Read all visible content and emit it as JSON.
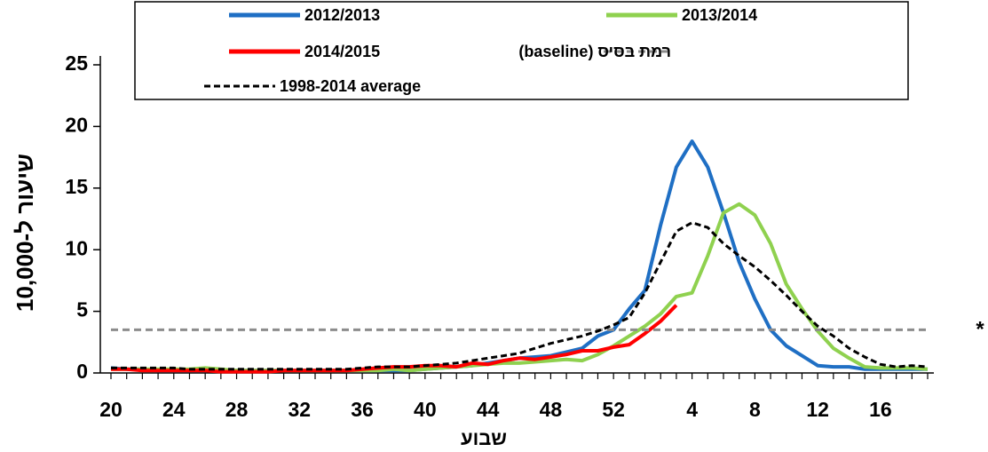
{
  "chart_data": {
    "type": "line",
    "y_label": "שיעור ל-10,000",
    "x_label": "שבוע",
    "annotation": "*",
    "categories": [
      20,
      null,
      null,
      null,
      24,
      null,
      null,
      null,
      28,
      null,
      null,
      null,
      32,
      null,
      null,
      null,
      36,
      null,
      null,
      null,
      40,
      null,
      null,
      null,
      44,
      null,
      null,
      null,
      48,
      null,
      null,
      null,
      52,
      null,
      null,
      null,
      null,
      4,
      null,
      null,
      null,
      8,
      null,
      null,
      null,
      12,
      null,
      null,
      null,
      16,
      null,
      null,
      null
    ],
    "ylim": [
      0,
      25
    ],
    "yticks": [
      0,
      5,
      10,
      15,
      20,
      25
    ],
    "series": [
      {
        "name": "2012/2013",
        "color": "#1f6fc4",
        "dashed": false,
        "values": [
          0.4,
          0.3,
          0.3,
          0.2,
          0.2,
          0.2,
          0.2,
          0.2,
          0.2,
          0.2,
          0.2,
          0.2,
          0.2,
          0.2,
          0.2,
          0.2,
          0.2,
          0.2,
          0.2,
          0.2,
          0.3,
          0.4,
          0.5,
          0.6,
          0.8,
          1.0,
          1.2,
          1.3,
          1.4,
          1.7,
          2.0,
          3.0,
          3.5,
          5.2,
          6.7,
          12.0,
          16.7,
          18.8,
          16.7,
          13.0,
          9.0,
          6.0,
          3.5,
          2.2,
          1.4,
          0.6,
          0.5,
          0.5,
          0.3,
          0.3,
          0.3,
          0.3,
          0.3
        ]
      },
      {
        "name": "2013/2014",
        "color": "#8fd14f",
        "dashed": false,
        "values": [
          0.3,
          0.3,
          0.3,
          0.3,
          0.3,
          0.3,
          0.4,
          0.3,
          0.2,
          0.2,
          0.2,
          0.2,
          0.2,
          0.2,
          0.2,
          0.2,
          0.2,
          0.2,
          0.3,
          0.2,
          0.3,
          0.4,
          0.5,
          0.6,
          0.7,
          0.8,
          0.8,
          0.9,
          1.0,
          1.1,
          1.0,
          1.5,
          2.2,
          3.0,
          3.8,
          4.8,
          6.2,
          6.5,
          9.5,
          13.0,
          13.7,
          12.8,
          10.5,
          7.2,
          5.2,
          3.4,
          2.0,
          1.2,
          0.5,
          0.4,
          0.4,
          0.4,
          0.3
        ]
      },
      {
        "name": "2014/2015",
        "color": "#ff0000",
        "dashed": false,
        "values": [
          0.3,
          0.3,
          0.2,
          0.2,
          0.2,
          0.2,
          0.2,
          0.1,
          0.1,
          0.1,
          0.1,
          0.2,
          0.2,
          0.2,
          0.2,
          0.2,
          0.3,
          0.4,
          0.5,
          0.5,
          0.6,
          0.6,
          0.5,
          0.8,
          0.7,
          1.0,
          1.2,
          1.1,
          1.3,
          1.5,
          1.8,
          1.8,
          2.1,
          2.3,
          3.2,
          4.2,
          5.5,
          null,
          null,
          null,
          null,
          null,
          null,
          null,
          null,
          null,
          null,
          null,
          null,
          null,
          null,
          null,
          null
        ]
      },
      {
        "name": "רמת בסיס (baseline)",
        "color": "#8c8c8c",
        "dashed": true,
        "values": [
          3.5,
          3.5,
          3.5,
          3.5,
          3.5,
          3.5,
          3.5,
          3.5,
          3.5,
          3.5,
          3.5,
          3.5,
          3.5,
          3.5,
          3.5,
          3.5,
          3.5,
          3.5,
          3.5,
          3.5,
          3.5,
          3.5,
          3.5,
          3.5,
          3.5,
          3.5,
          3.5,
          3.5,
          3.5,
          3.5,
          3.5,
          3.5,
          3.5,
          3.5,
          3.5,
          3.5,
          3.5,
          3.5,
          3.5,
          3.5,
          3.5,
          3.5,
          3.5,
          3.5,
          3.5,
          3.5,
          3.5,
          3.5,
          3.5,
          3.5,
          3.5,
          3.5,
          3.5
        ]
      },
      {
        "name": "1998-2014 average",
        "color": "#000000",
        "dashed": true,
        "values": [
          0.4,
          0.4,
          0.4,
          0.4,
          0.4,
          0.3,
          0.3,
          0.3,
          0.3,
          0.3,
          0.3,
          0.3,
          0.3,
          0.3,
          0.3,
          0.3,
          0.4,
          0.5,
          0.5,
          0.5,
          0.6,
          0.7,
          0.8,
          1.0,
          1.2,
          1.4,
          1.6,
          2.0,
          2.4,
          2.7,
          3.0,
          3.4,
          3.9,
          4.5,
          6.5,
          9.0,
          11.5,
          12.2,
          11.8,
          10.5,
          9.5,
          8.6,
          7.5,
          6.3,
          5.0,
          3.8,
          3.0,
          2.0,
          1.3,
          0.7,
          0.5,
          0.6,
          0.5
        ]
      }
    ]
  }
}
